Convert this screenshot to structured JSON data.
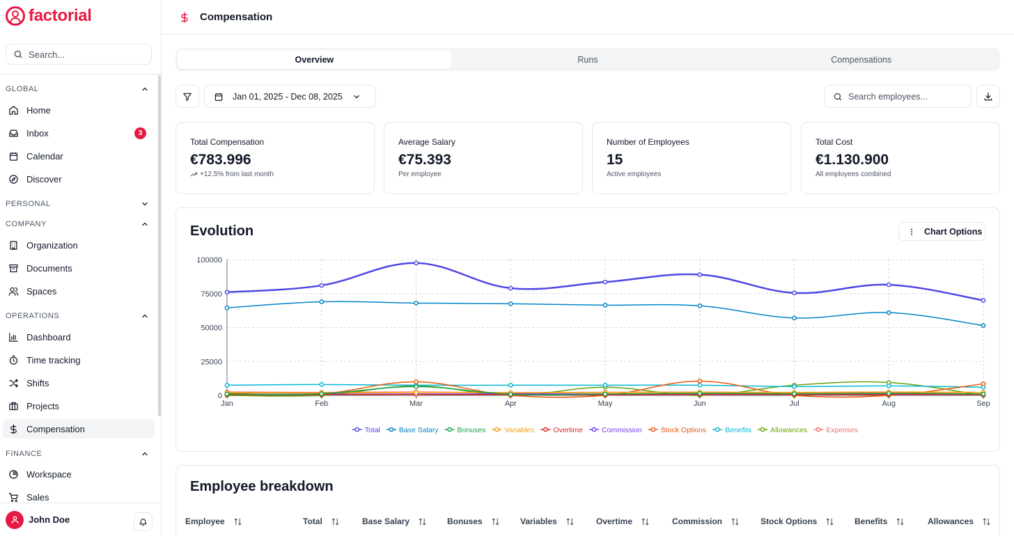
{
  "app": {
    "name": "factorial"
  },
  "sidebar": {
    "search_placeholder": "Search...",
    "sections": {
      "global": "GLOBAL",
      "personal": "PERSONAL",
      "company": "COMPANY",
      "operations": "OPERATIONS",
      "finance": "FINANCE"
    },
    "items": {
      "home": "Home",
      "inbox": "Inbox",
      "inbox_badge": "3",
      "calendar": "Calendar",
      "discover": "Discover",
      "organization": "Organization",
      "documents": "Documents",
      "spaces": "Spaces",
      "dashboard": "Dashboard",
      "time_tracking": "Time tracking",
      "shifts": "Shifts",
      "projects": "Projects",
      "compensation": "Compensation",
      "workspace": "Workspace",
      "sales": "Sales"
    },
    "user": {
      "name": "John Doe"
    }
  },
  "header": {
    "title": "Compensation"
  },
  "tabs": [
    "Overview",
    "Runs",
    "Compensations"
  ],
  "filters": {
    "date_range": "Jan 01, 2025 - Dec 08, 2025",
    "search_placeholder": "Search employees..."
  },
  "stats": [
    {
      "label": "Total Compensation",
      "value": "€783.996",
      "sub": "+12.5% from last month"
    },
    {
      "label": "Average Salary",
      "value": "€75.393",
      "sub": "Per employee"
    },
    {
      "label": "Number of Employees",
      "value": "15",
      "sub": "Active employees"
    },
    {
      "label": "Total Cost",
      "value": "€1.130.900",
      "sub": "All employees combined"
    }
  ],
  "evolution": {
    "title": "Evolution",
    "options_label": "Chart Options"
  },
  "chart_data": {
    "type": "line",
    "title": "Evolution",
    "x": [
      "Jan",
      "Feb",
      "Mar",
      "Apr",
      "May",
      "Jun",
      "Jul",
      "Aug",
      "Sep"
    ],
    "ylim": [
      0,
      100000
    ],
    "yticks": [
      "0",
      "25000",
      "50000",
      "75000",
      "100000"
    ],
    "grid": true,
    "legend": "bottom",
    "series": [
      {
        "name": "Total",
        "color": "#4f46e5",
        "values": [
          76000,
          81000,
          97500,
          79000,
          83500,
          89000,
          75500,
          81500,
          70000
        ]
      },
      {
        "name": "Base Salary",
        "color": "#0284c7",
        "values": [
          64500,
          69000,
          68000,
          67500,
          66500,
          66000,
          57000,
          61000,
          51500
        ]
      },
      {
        "name": "Bonuses",
        "color": "#16a34a",
        "values": [
          1000,
          1200,
          6500,
          800,
          1000,
          1500,
          1200,
          1500,
          1000
        ]
      },
      {
        "name": "Variables",
        "color": "#f59e0b",
        "values": [
          2000,
          1800,
          2200,
          2000,
          2100,
          2300,
          2200,
          2500,
          2200
        ]
      },
      {
        "name": "Overtime",
        "color": "#dc2626",
        "values": [
          500,
          600,
          700,
          500,
          400,
          500,
          500,
          600,
          400
        ]
      },
      {
        "name": "Commission",
        "color": "#7c3aed",
        "values": [
          800,
          900,
          1000,
          1200,
          1000,
          1100,
          900,
          1000,
          800
        ]
      },
      {
        "name": "Stock Options",
        "color": "#ea580c",
        "values": [
          1500,
          1200,
          10000,
          0,
          0,
          10500,
          0,
          0,
          8500
        ]
      },
      {
        "name": "Benefits",
        "color": "#06b6d4",
        "values": [
          7500,
          8000,
          7500,
          7500,
          7500,
          7500,
          6500,
          7000,
          6000
        ]
      },
      {
        "name": "Allowances",
        "color": "#65a30d",
        "values": [
          0,
          0,
          7000,
          0,
          6000,
          0,
          7500,
          9500,
          0
        ]
      },
      {
        "name": "Expenses",
        "color": "#f87171",
        "values": [
          2500,
          2200,
          2500,
          2000,
          2300,
          2400,
          2000,
          2200,
          2100
        ]
      }
    ]
  },
  "breakdown": {
    "title": "Employee breakdown",
    "columns": [
      "Employee",
      "Total",
      "Base Salary",
      "Bonuses",
      "Variables",
      "Overtime",
      "Commission",
      "Stock Options",
      "Benefits",
      "Allowances"
    ]
  }
}
